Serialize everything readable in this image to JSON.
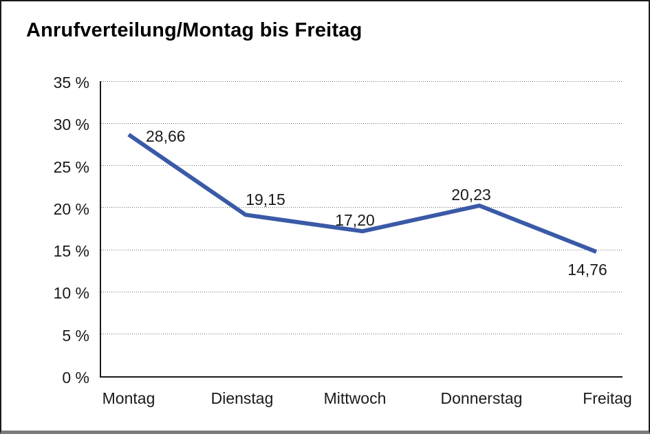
{
  "chart_data": {
    "type": "line",
    "title": "Anrufverteilung/Montag bis Freitag",
    "categories": [
      "Montag",
      "Dienstag",
      "Mittwoch",
      "Donnerstag",
      "Freitag"
    ],
    "series": [
      {
        "name": "Anrufverteilung",
        "values": [
          28.66,
          19.15,
          17.2,
          20.23,
          14.76
        ]
      }
    ],
    "point_labels": [
      "28,66",
      "19,15",
      "17,20",
      "20,23",
      "14,76"
    ],
    "y_ticks": [
      "35 %",
      "30 %",
      "25 %",
      "20 %",
      "15 %",
      "10 %",
      "5 %",
      "0 %"
    ],
    "y_tick_values": [
      35,
      30,
      25,
      20,
      15,
      10,
      5,
      0
    ],
    "ylim": [
      0,
      35
    ],
    "xlabel": "",
    "ylabel": "",
    "grid": "horizontal-dotted",
    "legend_position": "none",
    "line_color": "#3a5aa7",
    "axis_color": "#1a1a1a",
    "grid_color": "#6e6e6e",
    "text_color": "#1a1a1a",
    "background_color": "#ffffff"
  }
}
